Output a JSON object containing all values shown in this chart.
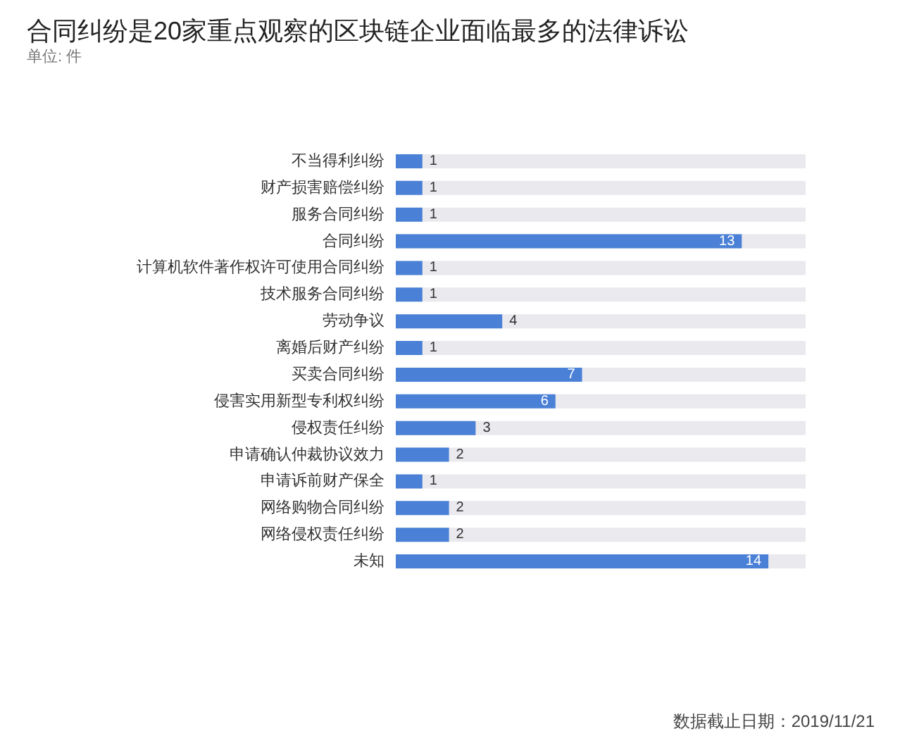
{
  "chart_data": {
    "type": "bar",
    "orientation": "horizontal",
    "title": "合同纠纷是20家重点观察的区块链企业面临最多的法律诉讼",
    "subtitle": "单位: 件",
    "categories": [
      "不当得利纠纷",
      "财产损害赔偿纠纷",
      "服务合同纠纷",
      "合同纠纷",
      "计算机软件著作权许可使用合同纠纷",
      "技术服务合同纠纷",
      "劳动争议",
      "离婚后财产纠纷",
      "买卖合同纠纷",
      "侵害实用新型专利权纠纷",
      "侵权责任纠纷",
      "申请确认仲裁协议效力",
      "申请诉前财产保全",
      "网络购物合同纠纷",
      "网络侵权责任纠纷",
      "未知"
    ],
    "values": [
      1,
      1,
      1,
      13,
      1,
      1,
      4,
      1,
      7,
      6,
      3,
      2,
      1,
      2,
      2,
      14
    ],
    "color": "#4a80d6",
    "data_labels": true,
    "annotations": [
      "数据截止日期：2019/11/21"
    ]
  }
}
